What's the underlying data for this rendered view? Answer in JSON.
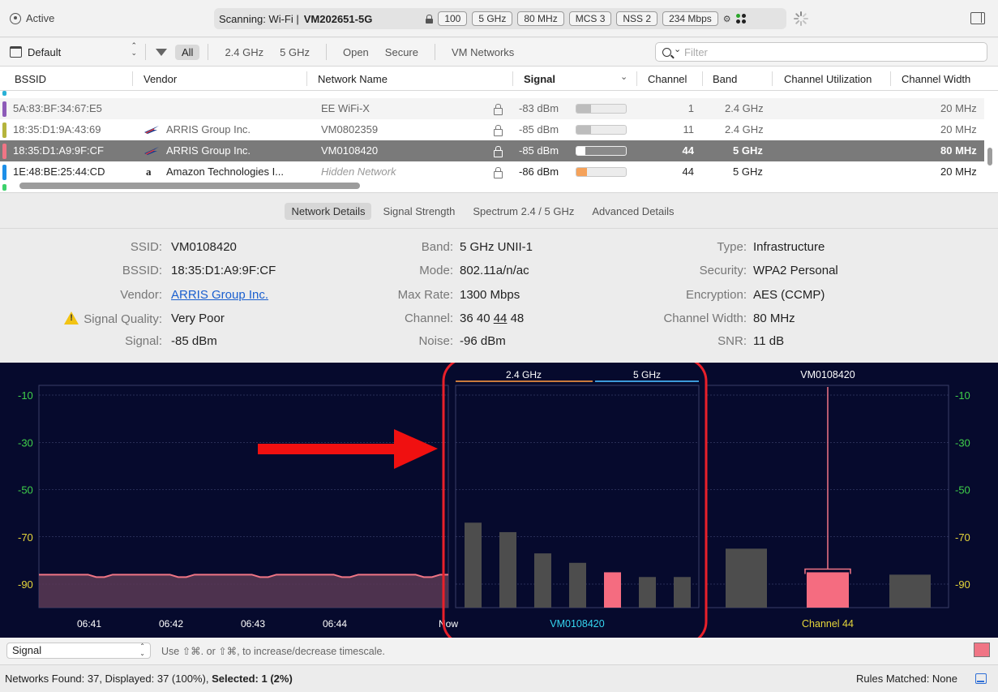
{
  "toolbar": {
    "status": "Active",
    "scanning_label": "Scanning: Wi-Fi  |",
    "current_network": "VM202651-5G",
    "pills": [
      "100",
      "5 GHz",
      "80 MHz",
      "MCS 3",
      "NSS 2",
      "234 Mbps"
    ]
  },
  "filterbar": {
    "profile": "Default",
    "filters": [
      "All",
      "2.4 GHz",
      "5 GHz",
      "Open",
      "Secure",
      "VM Networks"
    ],
    "search_placeholder": "Filter"
  },
  "table": {
    "columns": [
      "BSSID",
      "Vendor",
      "Network Name",
      "Signal",
      "Channel",
      "Band",
      "Channel Utilization",
      "Channel Width"
    ],
    "rows": [
      {
        "bssid": "5A:83:BF:34:67:E5",
        "vendor": "",
        "name": "EE WiFi-X",
        "signal": "-83 dBm",
        "signal_level": 0.3,
        "channel": "1",
        "band": "2.4 GHz",
        "width": "20 MHz",
        "color": "#8d5bb8"
      },
      {
        "bssid": "18:35:D1:9A:43:69",
        "vendor": "ARRIS Group Inc.",
        "name": "VM0802359",
        "signal": "-85 dBm",
        "signal_level": 0.3,
        "channel": "11",
        "band": "2.4 GHz",
        "width": "20 MHz",
        "color": "#b5b43c"
      },
      {
        "bssid": "18:35:D1:A9:9F:CF",
        "vendor": "ARRIS Group Inc.",
        "name": "VM0108420",
        "signal": "-85 dBm",
        "signal_level": 0.18,
        "channel": "44",
        "band": "5 GHz",
        "width": "80 MHz",
        "color": "#f07585"
      },
      {
        "bssid": "1E:48:BE:25:44:CD",
        "vendor": "Amazon Technologies I...",
        "name": "Hidden Network",
        "signal": "-86 dBm",
        "signal_level": 0.22,
        "channel": "44",
        "band": "5 GHz",
        "width": "20 MHz",
        "color": "#1d8fe8"
      }
    ]
  },
  "tabs": [
    "Network Details",
    "Signal Strength",
    "Spectrum 2.4 / 5 GHz",
    "Advanced Details"
  ],
  "details": {
    "ssid_label": "SSID:",
    "ssid": "VM0108420",
    "bssid_label": "BSSID:",
    "bssid": "18:35:D1:A9:9F:CF",
    "vendor_label": "Vendor:",
    "vendor": "ARRIS Group Inc.",
    "quality_label": "Signal Quality:",
    "quality": "Very Poor",
    "signal_label": "Signal:",
    "signal": "-85 dBm",
    "band_label": "Band:",
    "band": "5 GHz UNII-1",
    "mode_label": "Mode:",
    "mode": "802.11a/n/ac",
    "maxrate_label": "Max Rate:",
    "maxrate": "1300 Mbps",
    "channel_label": "Channel:",
    "channel_a": "36 40",
    "channel_b": "44",
    "channel_c": "48",
    "noise_label": "Noise:",
    "noise": "-96 dBm",
    "type_label": "Type:",
    "type": "Infrastructure",
    "security_label": "Security:",
    "security": "WPA2 Personal",
    "encryption_label": "Encryption:",
    "encryption": "AES (CCMP)",
    "width_label": "Channel Width:",
    "width": "80 MHz",
    "snr_label": "SNR:",
    "snr": "11 dB"
  },
  "chart_data": [
    {
      "type": "line",
      "x": [
        "06:41",
        "06:42",
        "06:43",
        "06:44",
        "Now"
      ],
      "y_ticks": [
        "-10",
        "-30",
        "-50",
        "-70",
        "-90"
      ],
      "ylim": [
        -100,
        -10
      ],
      "series": [
        {
          "values": [
            -86,
            -86,
            -86,
            -86,
            -85
          ]
        }
      ]
    },
    {
      "type": "bar",
      "band_labels": [
        "2.4 GHz",
        "5 GHz"
      ],
      "values": [
        -64,
        -68,
        -77,
        -81,
        -85,
        -87,
        -87
      ],
      "highlight_index": 4,
      "ylim": [
        -100,
        -10
      ],
      "xlabel": "VM0108420"
    },
    {
      "type": "bar",
      "title": "VM0108420",
      "values": [
        -75,
        -85,
        -86
      ],
      "highlight_index": 1,
      "ylim": [
        -100,
        -10
      ],
      "xlabel": "Channel 44"
    }
  ],
  "bottom": {
    "metric": "Signal",
    "hint": "Use ⇧⌘. or ⇧⌘, to increase/decrease timescale.",
    "highlight_color": "#f07585"
  },
  "status": {
    "left_prefix": "Networks Found: 37, Displayed: 37 (100%), ",
    "selected": "Selected: 1 (2%)",
    "right": "Rules Matched: None"
  }
}
